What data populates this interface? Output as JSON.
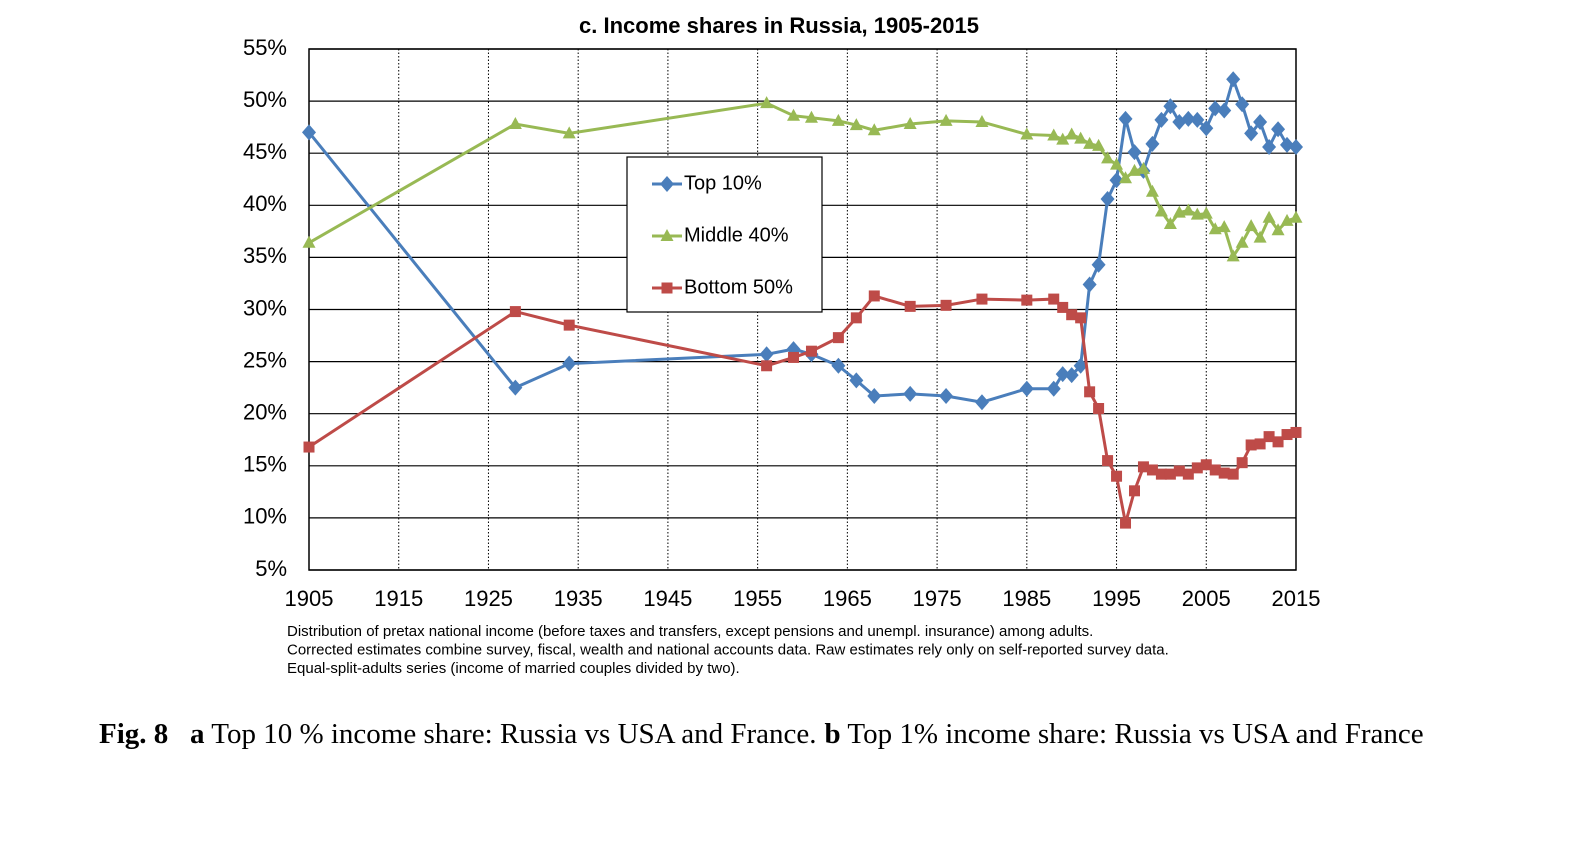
{
  "chart_data": {
    "type": "line",
    "title": "c. Income shares in Russia, 1905-2015",
    "x": [
      1905,
      1928,
      1934,
      1956,
      1959,
      1961,
      1964,
      1966,
      1968,
      1972,
      1976,
      1980,
      1985,
      1988,
      1989,
      1990,
      1991,
      1992,
      1993,
      1994,
      1995,
      1996,
      1997,
      1998,
      1999,
      2000,
      2001,
      2002,
      2003,
      2004,
      2005,
      2006,
      2007,
      2008,
      2009,
      2010,
      2011,
      2012,
      2013,
      2014,
      2015
    ],
    "series": [
      {
        "name": "Top 10%",
        "color": "#4a7ebb",
        "marker": "diamond",
        "values": [
          47,
          22.5,
          24.8,
          25.7,
          26.2,
          25.7,
          24.6,
          23.2,
          21.7,
          21.9,
          21.7,
          21.1,
          22.4,
          22.4,
          23.8,
          23.7,
          24.6,
          32.4,
          34.3,
          40.6,
          42.4,
          48.3,
          45.1,
          43.3,
          45.9,
          48.2,
          49.5,
          48,
          48.3,
          48.2,
          47.4,
          49.3,
          49.1,
          52.1,
          49.7,
          46.9,
          48,
          45.6,
          47.3,
          45.8,
          45.6
        ]
      },
      {
        "name": "Middle 40%",
        "color": "#98b954",
        "marker": "triangle",
        "values": [
          36.4,
          47.8,
          46.9,
          49.8,
          48.6,
          48.4,
          48.1,
          47.7,
          47.2,
          47.8,
          48.1,
          48,
          46.8,
          46.7,
          46.3,
          46.8,
          46.4,
          45.9,
          45.7,
          44.5,
          43.9,
          42.6,
          43.3,
          43.5,
          41.3,
          39.4,
          38.2,
          39.3,
          39.5,
          39.1,
          39.2,
          37.7,
          37.9,
          35.1,
          36.4,
          38,
          36.9,
          38.8,
          37.6,
          38.5,
          38.8
        ]
      },
      {
        "name": "Bottom 50%",
        "color": "#be4b48",
        "marker": "square",
        "values": [
          16.8,
          29.8,
          28.5,
          24.6,
          25.4,
          26,
          27.3,
          29.2,
          31.3,
          30.3,
          30.4,
          31,
          30.9,
          31,
          30.2,
          29.5,
          29.2,
          22.1,
          20.5,
          15.5,
          14,
          9.5,
          12.6,
          14.9,
          14.6,
          14.2,
          14.2,
          14.5,
          14.2,
          14.8,
          15.1,
          14.6,
          14.3,
          14.2,
          15.3,
          17,
          17.1,
          17.8,
          17.3,
          18,
          18.2
        ]
      }
    ],
    "xlim": [
      1905,
      2015
    ],
    "xticks": [
      1905,
      1915,
      1925,
      1935,
      1945,
      1955,
      1965,
      1975,
      1985,
      1995,
      2005,
      2015
    ],
    "ylim": [
      5,
      55
    ],
    "yticks": [
      {
        "value": 5,
        "label": "5%"
      },
      {
        "value": 10,
        "label": "10%"
      },
      {
        "value": 15,
        "label": "15%"
      },
      {
        "value": 20,
        "label": "20%"
      },
      {
        "value": 25,
        "label": "25%"
      },
      {
        "value": 30,
        "label": "30%"
      },
      {
        "value": 35,
        "label": "35%"
      },
      {
        "value": 40,
        "label": "40%"
      },
      {
        "value": 45,
        "label": "45%"
      },
      {
        "value": 50,
        "label": "50%"
      },
      {
        "value": 55,
        "label": "55%"
      }
    ],
    "grid": true,
    "legend": "upper-center",
    "notes": [
      "Distribution of pretax national income (before taxes and transfers, except pensions and unempl. insurance) among adults.",
      "Corrected estimates combine survey, fiscal, wealth and national accounts data. Raw estimates rely only on self-reported survey data.",
      "Equal-split-adults series (income of married couples divided by two)."
    ]
  },
  "caption": {
    "label": "Fig. 8",
    "a": "a",
    "a_text": "Top 10 % income share: Russia vs USA and France.",
    "b": "b",
    "b_text": "Top 1% income share: Russia vs USA and France"
  }
}
